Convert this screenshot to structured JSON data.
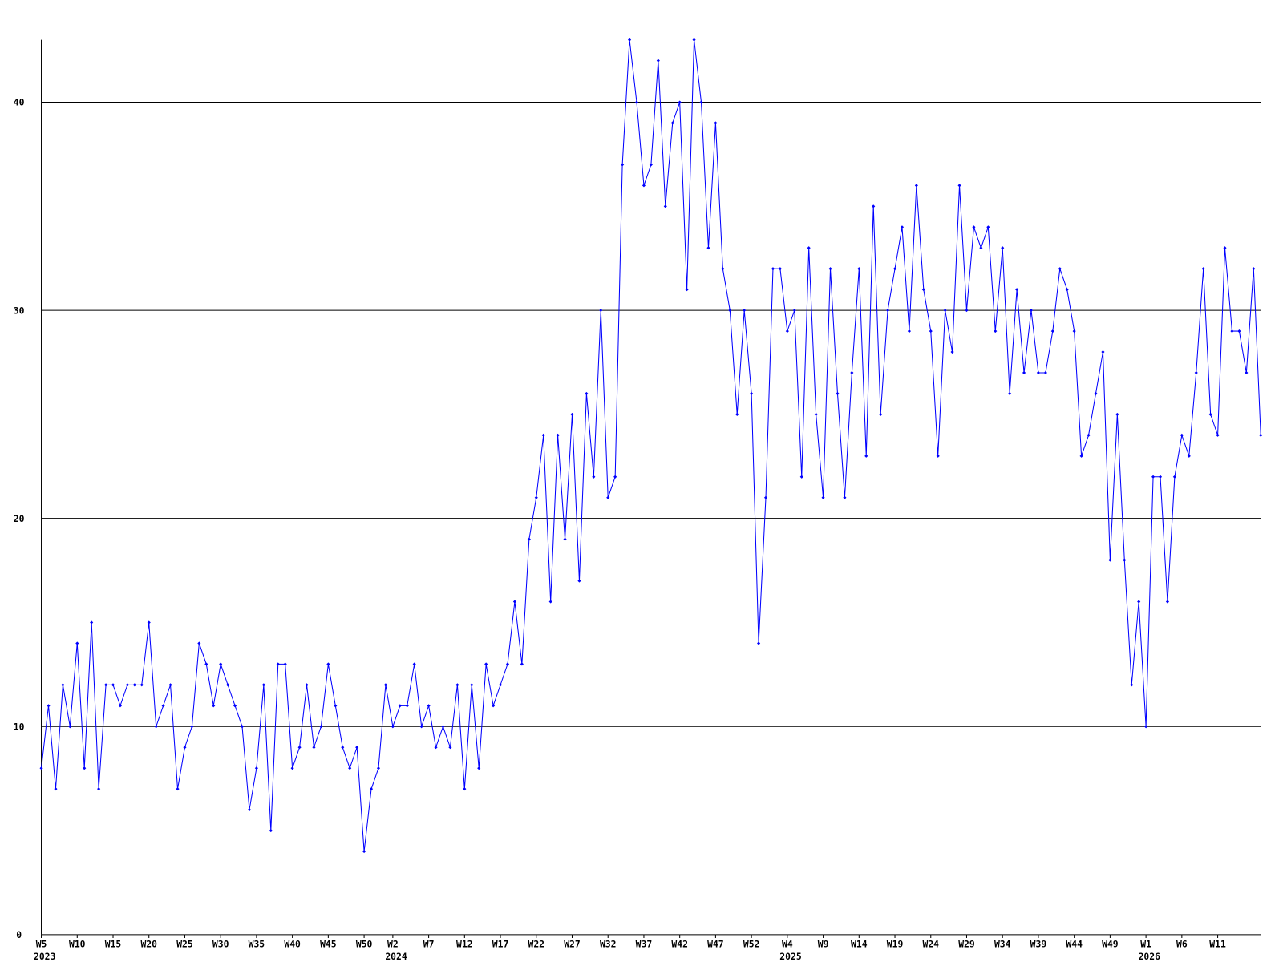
{
  "chart_data": {
    "type": "line",
    "color": "#0000ff",
    "grid": true,
    "values": [
      8,
      11,
      7,
      12,
      10,
      14,
      8,
      15,
      7,
      12,
      12,
      11,
      12,
      12,
      12,
      15,
      10,
      11,
      12,
      7,
      9,
      10,
      14,
      13,
      11,
      13,
      12,
      11,
      10,
      6,
      8,
      12,
      5,
      13,
      13,
      8,
      9,
      12,
      9,
      10,
      13,
      11,
      9,
      8,
      9,
      4,
      7,
      8,
      12,
      10,
      11,
      11,
      13,
      10,
      11,
      9,
      10,
      9,
      12,
      7,
      12,
      8,
      13,
      11,
      12,
      13,
      16,
      13,
      19,
      21,
      24,
      16,
      24,
      19,
      25,
      17,
      26,
      22,
      30,
      21,
      22,
      37,
      43,
      40,
      36,
      37,
      42,
      35,
      39,
      40,
      31,
      43,
      40,
      33,
      39,
      32,
      30,
      25,
      30,
      26,
      14,
      21,
      32,
      32,
      29,
      30,
      22,
      33,
      25,
      21,
      32,
      26,
      21,
      27,
      32,
      23,
      35,
      25,
      30,
      32,
      34,
      29,
      36,
      31,
      29,
      23,
      30,
      28,
      36,
      30,
      34,
      33,
      34,
      29,
      33,
      26,
      31,
      27,
      30,
      27,
      27,
      29,
      32,
      31,
      29,
      23,
      24,
      26,
      28,
      18,
      25,
      18,
      12,
      16,
      10,
      22,
      22,
      16,
      22,
      24,
      23,
      27,
      32,
      25,
      24,
      33,
      29,
      29,
      27,
      32,
      24
    ],
    "xlim": [
      0,
      170
    ],
    "xticks": [
      {
        "value": 0,
        "label": "W5"
      },
      {
        "value": 5,
        "label": "W10"
      },
      {
        "value": 10,
        "label": "W15"
      },
      {
        "value": 15,
        "label": "W20"
      },
      {
        "value": 20,
        "label": "W25"
      },
      {
        "value": 25,
        "label": "W30"
      },
      {
        "value": 30,
        "label": "W35"
      },
      {
        "value": 35,
        "label": "W40"
      },
      {
        "value": 40,
        "label": "W45"
      },
      {
        "value": 45,
        "label": "W50"
      },
      {
        "value": 49,
        "label": "W2"
      },
      {
        "value": 54,
        "label": "W7"
      },
      {
        "value": 59,
        "label": "W12"
      },
      {
        "value": 64,
        "label": "W17"
      },
      {
        "value": 69,
        "label": "W22"
      },
      {
        "value": 74,
        "label": "W27"
      },
      {
        "value": 79,
        "label": "W32"
      },
      {
        "value": 84,
        "label": "W37"
      },
      {
        "value": 89,
        "label": "W42"
      },
      {
        "value": 94,
        "label": "W47"
      },
      {
        "value": 99,
        "label": "W52"
      },
      {
        "value": 104,
        "label": "W4"
      },
      {
        "value": 109,
        "label": "W9"
      },
      {
        "value": 114,
        "label": "W14"
      },
      {
        "value": 119,
        "label": "W19"
      },
      {
        "value": 124,
        "label": "W24"
      },
      {
        "value": 129,
        "label": "W29"
      },
      {
        "value": 134,
        "label": "W34"
      },
      {
        "value": 139,
        "label": "W39"
      },
      {
        "value": 144,
        "label": "W44"
      },
      {
        "value": 149,
        "label": "W49"
      },
      {
        "value": 154,
        "label": "W1"
      },
      {
        "value": 159,
        "label": "W6"
      },
      {
        "value": 164,
        "label": "W11"
      }
    ],
    "year_labels": [
      {
        "value": 0,
        "label": "2023"
      },
      {
        "value": 49,
        "label": "2024"
      },
      {
        "value": 104,
        "label": "2025"
      },
      {
        "value": 154,
        "label": "2026"
      }
    ],
    "ylim": [
      0,
      43
    ],
    "yticks": [
      0,
      10,
      20,
      30,
      40
    ]
  }
}
